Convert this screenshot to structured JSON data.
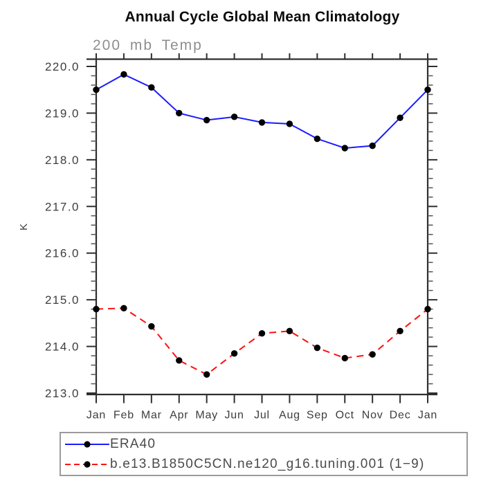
{
  "chart_data": {
    "type": "line",
    "title": "Annual Cycle Global Mean Climatology",
    "subtitle": "200 mb Temp",
    "ylabel": "K",
    "xlabel": "",
    "categories": [
      "Jan",
      "Feb",
      "Mar",
      "Apr",
      "May",
      "Jun",
      "Jul",
      "Aug",
      "Sep",
      "Oct",
      "Nov",
      "Dec",
      "Jan"
    ],
    "ylim": [
      213.0,
      220.0
    ],
    "ytick_step": 1.0,
    "ytick_minor_step": 0.2,
    "ytick_labels": [
      "220.0",
      "219.0",
      "218.0",
      "217.0",
      "216.0",
      "215.0",
      "214.0",
      "213.0"
    ],
    "grid": false,
    "legend_position": "below-plot-left",
    "axis_color": "#2e2e2e",
    "tick_label_color": "#3d3d3d",
    "marker": "filled-circle",
    "marker_color": "#000000",
    "series": [
      {
        "name": "ERA40",
        "color": "#1a1aff",
        "style": "solid",
        "marker_color": "#000000",
        "values": [
          219.5,
          219.83,
          219.55,
          219.0,
          218.85,
          218.92,
          218.8,
          218.77,
          218.45,
          218.25,
          218.3,
          218.9,
          219.5
        ]
      },
      {
        "name": "b.e13.B1850C5CN.ne120_g16.tuning.001 (1−9)",
        "color": "#ff0f0f",
        "style": "dashed",
        "marker_color": "#000000",
        "values": [
          214.8,
          214.82,
          214.43,
          213.7,
          213.4,
          213.85,
          214.28,
          214.33,
          213.97,
          213.75,
          213.83,
          214.33,
          214.8
        ]
      }
    ]
  }
}
